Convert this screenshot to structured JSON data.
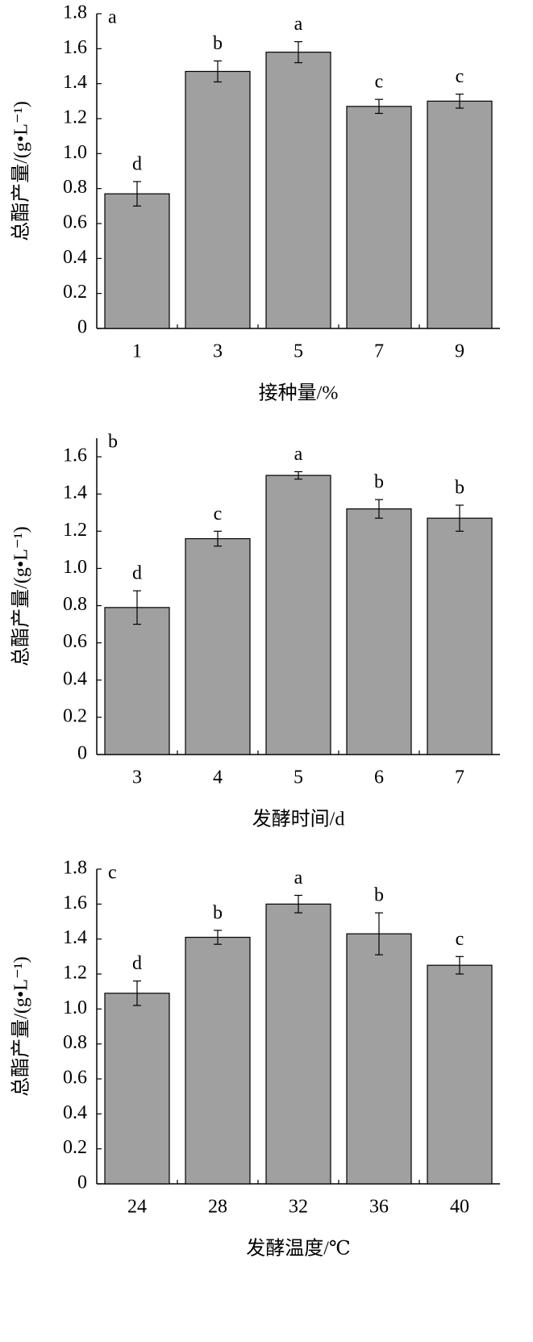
{
  "chart_data": [
    {
      "type": "bar",
      "panel_label": "a",
      "x_label": "接种量/%",
      "y_label": "总酯产量/(g•L⁻¹)",
      "categories": [
        "1",
        "3",
        "5",
        "7",
        "9"
      ],
      "values": [
        0.77,
        1.47,
        1.58,
        1.27,
        1.3
      ],
      "errors": [
        0.07,
        0.06,
        0.06,
        0.04,
        0.04
      ],
      "annotations": [
        "d",
        "b",
        "a",
        "c",
        "c"
      ],
      "color": "#a0a0a0",
      "ylim": [
        0,
        1.8
      ],
      "yticks": [
        0,
        0.2,
        0.4,
        0.6,
        0.8,
        {
          "value": 1,
          "label": "1.0"
        },
        1.2,
        1.4,
        1.6,
        1.8
      ]
    },
    {
      "type": "bar",
      "panel_label": "b",
      "x_label": "发酵时间/d",
      "y_label": "总酯产量/(g•L⁻¹)",
      "categories": [
        "3",
        "4",
        "5",
        "6",
        "7"
      ],
      "values": [
        0.79,
        1.16,
        1.5,
        1.32,
        1.27
      ],
      "errors": [
        0.09,
        0.04,
        0.02,
        0.05,
        0.07
      ],
      "annotations": [
        "d",
        "c",
        "a",
        "b",
        "b"
      ],
      "color": "#a0a0a0",
      "ylim": [
        0,
        1.7
      ],
      "yticks": [
        0,
        0.2,
        0.4,
        0.6,
        0.8,
        {
          "value": 1,
          "label": "1.0"
        },
        1.2,
        1.4,
        1.6
      ]
    },
    {
      "type": "bar",
      "panel_label": "c",
      "x_label": "发酵温度/℃",
      "y_label": "总酯产量/(g•L⁻¹)",
      "categories": [
        "24",
        "28",
        "32",
        "36",
        "40"
      ],
      "values": [
        1.09,
        1.41,
        1.6,
        1.43,
        1.25
      ],
      "errors": [
        0.07,
        0.04,
        0.05,
        0.12,
        0.05
      ],
      "annotations": [
        "d",
        "b",
        "a",
        "b",
        "c"
      ],
      "color": "#a0a0a0",
      "ylim": [
        0,
        1.8
      ],
      "yticks": [
        0,
        0.2,
        0.4,
        0.6,
        0.8,
        {
          "value": 1,
          "label": "1.0"
        },
        1.2,
        1.4,
        1.6,
        1.8
      ]
    }
  ]
}
